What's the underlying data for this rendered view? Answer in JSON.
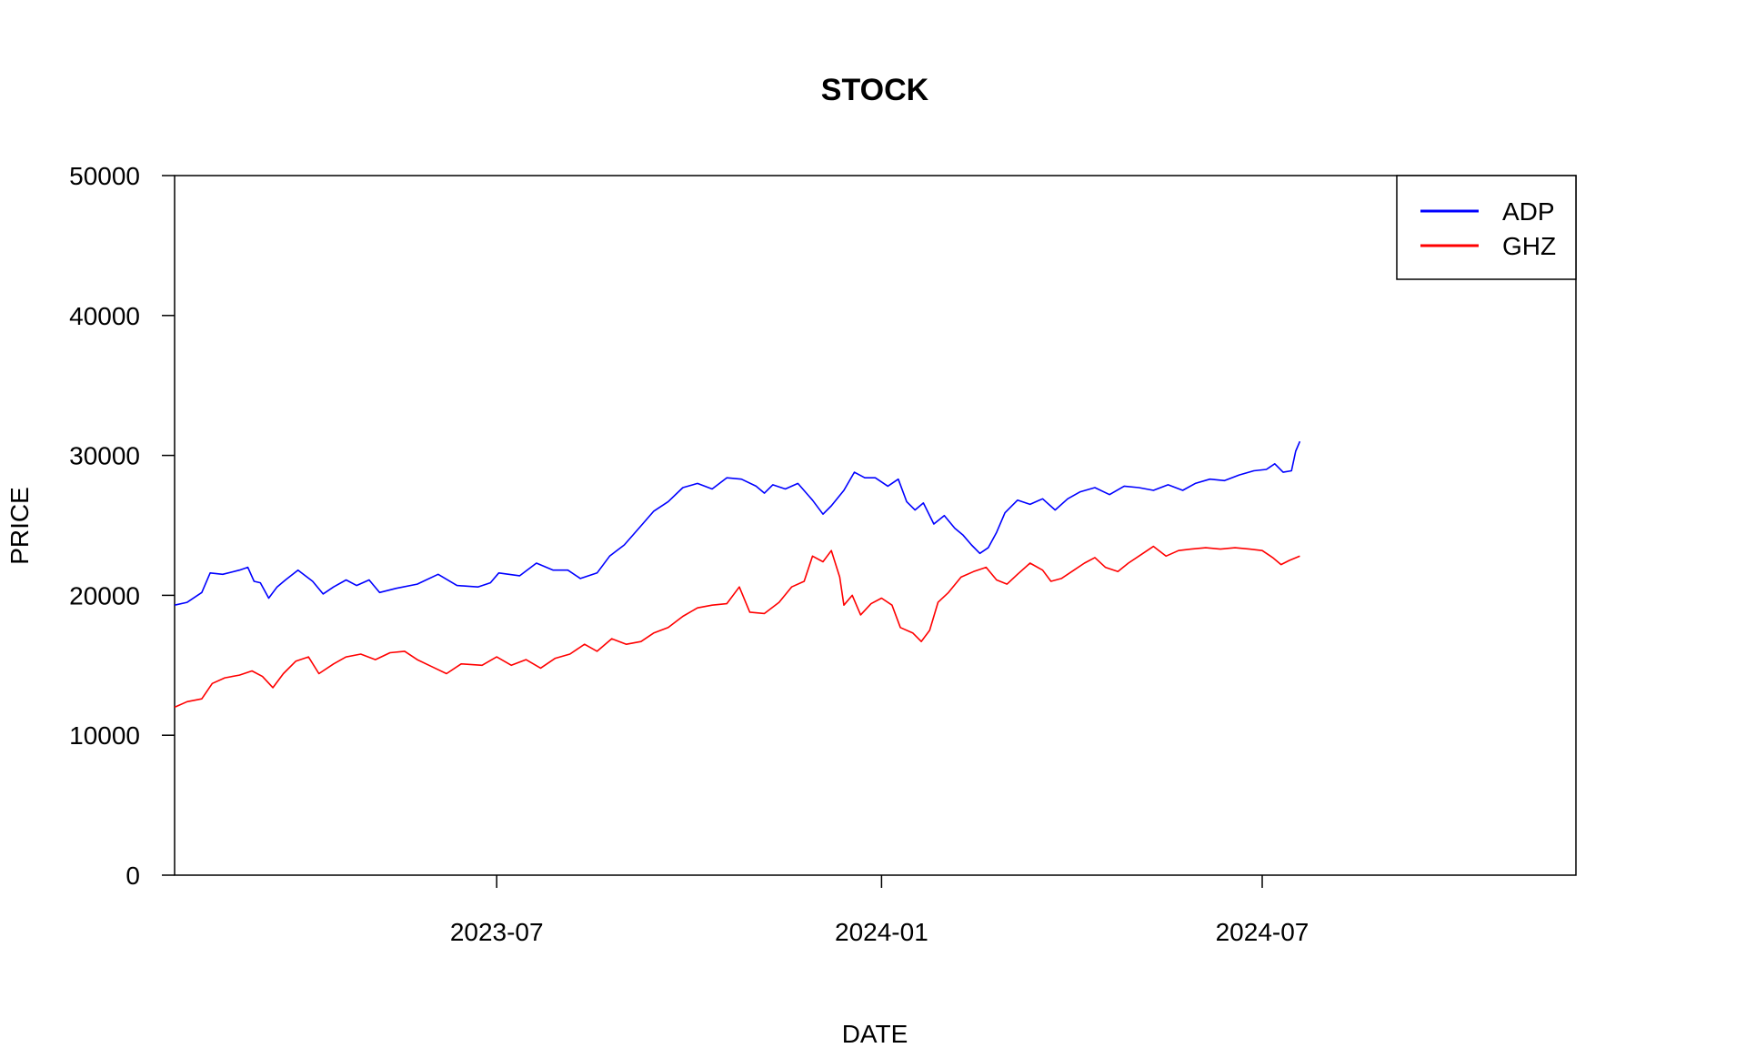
{
  "chart_data": {
    "type": "line",
    "title": "STOCK",
    "xlabel": "DATE",
    "ylabel": "PRICE",
    "ylim": [
      0,
      50000
    ],
    "yticks": [
      0,
      10000,
      20000,
      30000,
      40000,
      50000
    ],
    "xlim": [
      "2023-01-28",
      "2024-11-28"
    ],
    "xticks": [
      "2023-07",
      "2024-01",
      "2024-07"
    ],
    "grid": false,
    "legend": {
      "position": "top-right"
    },
    "series": [
      {
        "name": "ADP",
        "color": "#0000ff",
        "points": [
          [
            "2023-01-28",
            19300
          ],
          [
            "2023-02-03",
            19500
          ],
          [
            "2023-02-10",
            20200
          ],
          [
            "2023-02-14",
            21600
          ],
          [
            "2023-02-20",
            21500
          ],
          [
            "2023-02-28",
            21800
          ],
          [
            "2023-03-04",
            22000
          ],
          [
            "2023-03-07",
            21000
          ],
          [
            "2023-03-10",
            20900
          ],
          [
            "2023-03-14",
            19800
          ],
          [
            "2023-03-18",
            20600
          ],
          [
            "2023-03-22",
            21100
          ],
          [
            "2023-03-28",
            21800
          ],
          [
            "2023-04-04",
            21000
          ],
          [
            "2023-04-09",
            20100
          ],
          [
            "2023-04-14",
            20600
          ],
          [
            "2023-04-20",
            21100
          ],
          [
            "2023-04-25",
            20700
          ],
          [
            "2023-05-01",
            21100
          ],
          [
            "2023-05-06",
            20200
          ],
          [
            "2023-05-14",
            20500
          ],
          [
            "2023-05-24",
            20800
          ],
          [
            "2023-06-03",
            21500
          ],
          [
            "2023-06-12",
            20700
          ],
          [
            "2023-06-22",
            20600
          ],
          [
            "2023-06-28",
            20900
          ],
          [
            "2023-07-02",
            21600
          ],
          [
            "2023-07-12",
            21400
          ],
          [
            "2023-07-20",
            22300
          ],
          [
            "2023-07-28",
            21800
          ],
          [
            "2023-08-04",
            21800
          ],
          [
            "2023-08-10",
            21200
          ],
          [
            "2023-08-18",
            21600
          ],
          [
            "2023-08-24",
            22800
          ],
          [
            "2023-08-31",
            23600
          ],
          [
            "2023-09-07",
            24800
          ],
          [
            "2023-09-14",
            26000
          ],
          [
            "2023-09-21",
            26700
          ],
          [
            "2023-09-28",
            27700
          ],
          [
            "2023-10-05",
            28000
          ],
          [
            "2023-10-12",
            27600
          ],
          [
            "2023-10-19",
            28400
          ],
          [
            "2023-10-26",
            28300
          ],
          [
            "2023-11-02",
            27800
          ],
          [
            "2023-11-06",
            27300
          ],
          [
            "2023-11-10",
            27900
          ],
          [
            "2023-11-16",
            27600
          ],
          [
            "2023-11-22",
            28000
          ],
          [
            "2023-11-29",
            26800
          ],
          [
            "2023-12-04",
            25800
          ],
          [
            "2023-12-08",
            26400
          ],
          [
            "2023-12-14",
            27500
          ],
          [
            "2023-12-19",
            28800
          ],
          [
            "2023-12-24",
            28400
          ],
          [
            "2023-12-29",
            28400
          ],
          [
            "2024-01-04",
            27800
          ],
          [
            "2024-01-09",
            28300
          ],
          [
            "2024-01-13",
            26700
          ],
          [
            "2024-01-17",
            26100
          ],
          [
            "2024-01-21",
            26600
          ],
          [
            "2024-01-26",
            25100
          ],
          [
            "2024-01-31",
            25700
          ],
          [
            "2024-02-05",
            24800
          ],
          [
            "2024-02-09",
            24300
          ],
          [
            "2024-02-13",
            23600
          ],
          [
            "2024-02-17",
            23000
          ],
          [
            "2024-02-21",
            23400
          ],
          [
            "2024-02-25",
            24500
          ],
          [
            "2024-02-29",
            25900
          ],
          [
            "2024-03-06",
            26800
          ],
          [
            "2024-03-12",
            26500
          ],
          [
            "2024-03-18",
            26900
          ],
          [
            "2024-03-24",
            26100
          ],
          [
            "2024-03-30",
            26900
          ],
          [
            "2024-04-05",
            27400
          ],
          [
            "2024-04-12",
            27700
          ],
          [
            "2024-04-19",
            27200
          ],
          [
            "2024-04-26",
            27800
          ],
          [
            "2024-05-03",
            27700
          ],
          [
            "2024-05-10",
            27500
          ],
          [
            "2024-05-17",
            27900
          ],
          [
            "2024-05-24",
            27500
          ],
          [
            "2024-05-30",
            28000
          ],
          [
            "2024-06-06",
            28300
          ],
          [
            "2024-06-13",
            28200
          ],
          [
            "2024-06-20",
            28600
          ],
          [
            "2024-06-27",
            28900
          ],
          [
            "2024-07-03",
            29000
          ],
          [
            "2024-07-07",
            29400
          ],
          [
            "2024-07-11",
            28800
          ],
          [
            "2024-07-15",
            28900
          ],
          [
            "2024-07-17",
            30300
          ],
          [
            "2024-07-19",
            31000
          ]
        ]
      },
      {
        "name": "GHZ",
        "color": "#ff0000",
        "points": [
          [
            "2023-01-28",
            12000
          ],
          [
            "2023-02-03",
            12400
          ],
          [
            "2023-02-10",
            12600
          ],
          [
            "2023-02-15",
            13700
          ],
          [
            "2023-02-21",
            14100
          ],
          [
            "2023-02-28",
            14300
          ],
          [
            "2023-03-06",
            14600
          ],
          [
            "2023-03-11",
            14200
          ],
          [
            "2023-03-16",
            13400
          ],
          [
            "2023-03-21",
            14400
          ],
          [
            "2023-03-27",
            15300
          ],
          [
            "2023-04-02",
            15600
          ],
          [
            "2023-04-07",
            14400
          ],
          [
            "2023-04-14",
            15100
          ],
          [
            "2023-04-20",
            15600
          ],
          [
            "2023-04-27",
            15800
          ],
          [
            "2023-05-04",
            15400
          ],
          [
            "2023-05-11",
            15900
          ],
          [
            "2023-05-18",
            16000
          ],
          [
            "2023-05-24",
            15400
          ],
          [
            "2023-05-31",
            14900
          ],
          [
            "2023-06-07",
            14400
          ],
          [
            "2023-06-14",
            15100
          ],
          [
            "2023-06-24",
            15000
          ],
          [
            "2023-07-01",
            15600
          ],
          [
            "2023-07-08",
            15000
          ],
          [
            "2023-07-15",
            15400
          ],
          [
            "2023-07-22",
            14800
          ],
          [
            "2023-07-29",
            15500
          ],
          [
            "2023-08-05",
            15800
          ],
          [
            "2023-08-12",
            16500
          ],
          [
            "2023-08-18",
            16000
          ],
          [
            "2023-08-25",
            16900
          ],
          [
            "2023-09-01",
            16500
          ],
          [
            "2023-09-08",
            16700
          ],
          [
            "2023-09-14",
            17300
          ],
          [
            "2023-09-21",
            17700
          ],
          [
            "2023-09-28",
            18500
          ],
          [
            "2023-10-05",
            19100
          ],
          [
            "2023-10-12",
            19300
          ],
          [
            "2023-10-19",
            19400
          ],
          [
            "2023-10-25",
            20600
          ],
          [
            "2023-10-30",
            18800
          ],
          [
            "2023-11-06",
            18700
          ],
          [
            "2023-11-13",
            19500
          ],
          [
            "2023-11-19",
            20600
          ],
          [
            "2023-11-25",
            21000
          ],
          [
            "2023-11-29",
            22800
          ],
          [
            "2023-12-04",
            22400
          ],
          [
            "2023-12-08",
            23200
          ],
          [
            "2023-12-12",
            21300
          ],
          [
            "2023-12-14",
            19300
          ],
          [
            "2023-12-18",
            20000
          ],
          [
            "2023-12-22",
            18600
          ],
          [
            "2023-12-27",
            19400
          ],
          [
            "2024-01-01",
            19800
          ],
          [
            "2024-01-06",
            19300
          ],
          [
            "2024-01-10",
            17700
          ],
          [
            "2024-01-16",
            17300
          ],
          [
            "2024-01-20",
            16700
          ],
          [
            "2024-01-24",
            17500
          ],
          [
            "2024-01-28",
            19500
          ],
          [
            "2024-02-02",
            20200
          ],
          [
            "2024-02-08",
            21300
          ],
          [
            "2024-02-14",
            21700
          ],
          [
            "2024-02-20",
            22000
          ],
          [
            "2024-02-25",
            21100
          ],
          [
            "2024-03-01",
            20800
          ],
          [
            "2024-03-06",
            21500
          ],
          [
            "2024-03-12",
            22300
          ],
          [
            "2024-03-18",
            21800
          ],
          [
            "2024-03-22",
            21000
          ],
          [
            "2024-03-27",
            21200
          ],
          [
            "2024-04-02",
            21800
          ],
          [
            "2024-04-07",
            22300
          ],
          [
            "2024-04-12",
            22700
          ],
          [
            "2024-04-17",
            22000
          ],
          [
            "2024-04-23",
            21700
          ],
          [
            "2024-04-28",
            22300
          ],
          [
            "2024-05-04",
            22900
          ],
          [
            "2024-05-10",
            23500
          ],
          [
            "2024-05-16",
            22800
          ],
          [
            "2024-05-22",
            23200
          ],
          [
            "2024-05-28",
            23300
          ],
          [
            "2024-06-04",
            23400
          ],
          [
            "2024-06-11",
            23300
          ],
          [
            "2024-06-18",
            23400
          ],
          [
            "2024-06-25",
            23300
          ],
          [
            "2024-07-01",
            23200
          ],
          [
            "2024-07-06",
            22700
          ],
          [
            "2024-07-10",
            22200
          ],
          [
            "2024-07-14",
            22500
          ],
          [
            "2024-07-19",
            22800
          ]
        ]
      }
    ]
  }
}
